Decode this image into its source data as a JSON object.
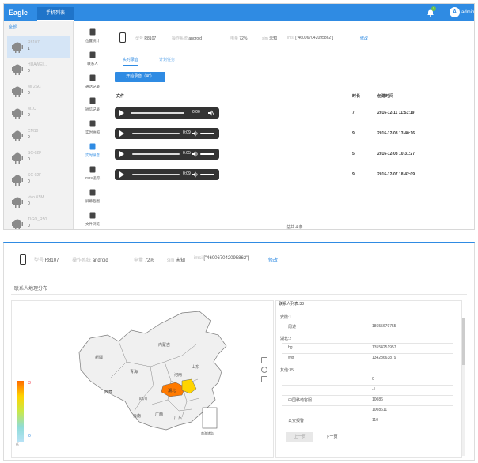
{
  "topbar": {
    "logo": "Eagle",
    "nav_tab": "手机列表",
    "badge": "1",
    "avatar_letter": "A",
    "user": "admin"
  },
  "device_list": {
    "header": "全部",
    "items": [
      {
        "name": "R8107",
        "count": "1"
      },
      {
        "name": "HUAWEI ...",
        "count": "0"
      },
      {
        "name": "MI 2SC",
        "count": "0"
      },
      {
        "name": "M1C",
        "count": "0"
      },
      {
        "name": "CM10",
        "count": "0"
      },
      {
        "name": "SC-02F",
        "count": "0"
      },
      {
        "name": "SC-02F",
        "count": "0"
      },
      {
        "name": "vivo X5M",
        "count": "0"
      },
      {
        "name": "TIGO_R50",
        "count": "0"
      }
    ]
  },
  "tools": [
    {
      "label": "位置统计"
    },
    {
      "label": "联系人"
    },
    {
      "label": "通话记录"
    },
    {
      "label": "短信记录"
    },
    {
      "label": "实时拍照"
    },
    {
      "label": "实时录音"
    },
    {
      "label": "GPS追踪"
    },
    {
      "label": "屏幕截图"
    },
    {
      "label": "文件浏览"
    }
  ],
  "device_info": {
    "model_key": "型号",
    "model": "R8107",
    "os_key": "操作系统",
    "os": "android",
    "battery_key": "电量",
    "battery": "72%",
    "sim_key": "sim",
    "sim": "未知",
    "imsi_key": "imsi",
    "imsi": "[\"460067042095862\"]",
    "action": "修改"
  },
  "tabs": {
    "realtime": "实时录音",
    "scheduled": "计划任务"
  },
  "record_button": "开始录音（40）",
  "table": {
    "headers": {
      "file": "文件",
      "duration": "时长",
      "created": "创建时间"
    },
    "rows": [
      {
        "time": "0:00",
        "duration": "7",
        "created": "2016-12-11 11:53:19"
      },
      {
        "time": "0:09",
        "duration": "9",
        "created": "2016-12-08 13:40:16"
      },
      {
        "time": "0:05",
        "duration": "5",
        "created": "2016-12-08 10:31:27"
      },
      {
        "time": "0:09",
        "duration": "9",
        "created": "2016-12-07 18:42:09"
      }
    ],
    "footer": "总共 4 条"
  },
  "panel2": {
    "device_info": {
      "model_key": "型号",
      "model": "R8107",
      "os_key": "操作系统",
      "os": "android",
      "battery_key": "电量",
      "battery": "72%",
      "sim_key": "sim",
      "sim": "未知",
      "imsi_key": "imsi",
      "imsi": "[\"460067042095862\"]",
      "action": "修改"
    },
    "section_title": "联系人地理分布",
    "legend": {
      "high": "3",
      "low": "0",
      "top": "高",
      "bottom": "低"
    },
    "provinces": {
      "xinjiang": "新疆",
      "tibet": "西藏",
      "neimenggu": "内蒙古",
      "qinghai": "青海",
      "sichuan": "四川",
      "yunnan": "云南",
      "guangxi": "广西",
      "guangdong": "广东",
      "hubei": "湖北",
      "henan": "河南",
      "shandong": "山东",
      "south_sea": "南海诸岛"
    },
    "contacts": {
      "title": "联系人列表:38",
      "groups": [
        {
          "label": "安徽:1",
          "rows": [
            {
              "name": "周述",
              "phone": "18655679755"
            }
          ]
        },
        {
          "label": "湖北:2",
          "rows": [
            {
              "name": "hg",
              "phone": "13554251957"
            },
            {
              "name": "wxf",
              "phone": "13428663879"
            }
          ]
        },
        {
          "label": "其他:35",
          "rows": [
            {
              "name": "",
              "phone": "0"
            },
            {
              "name": "",
              "phone": "-1"
            },
            {
              "name": "中国移动客服",
              "phone": "10086"
            },
            {
              "name": "",
              "phone": "1008611"
            },
            {
              "name": "公安报警",
              "phone": "110"
            }
          ]
        }
      ],
      "prev": "上一页",
      "next": "下一页"
    }
  },
  "colors": {
    "primary": "#2f8be3",
    "hot": "#ff6a00",
    "warm": "#ffd400"
  }
}
